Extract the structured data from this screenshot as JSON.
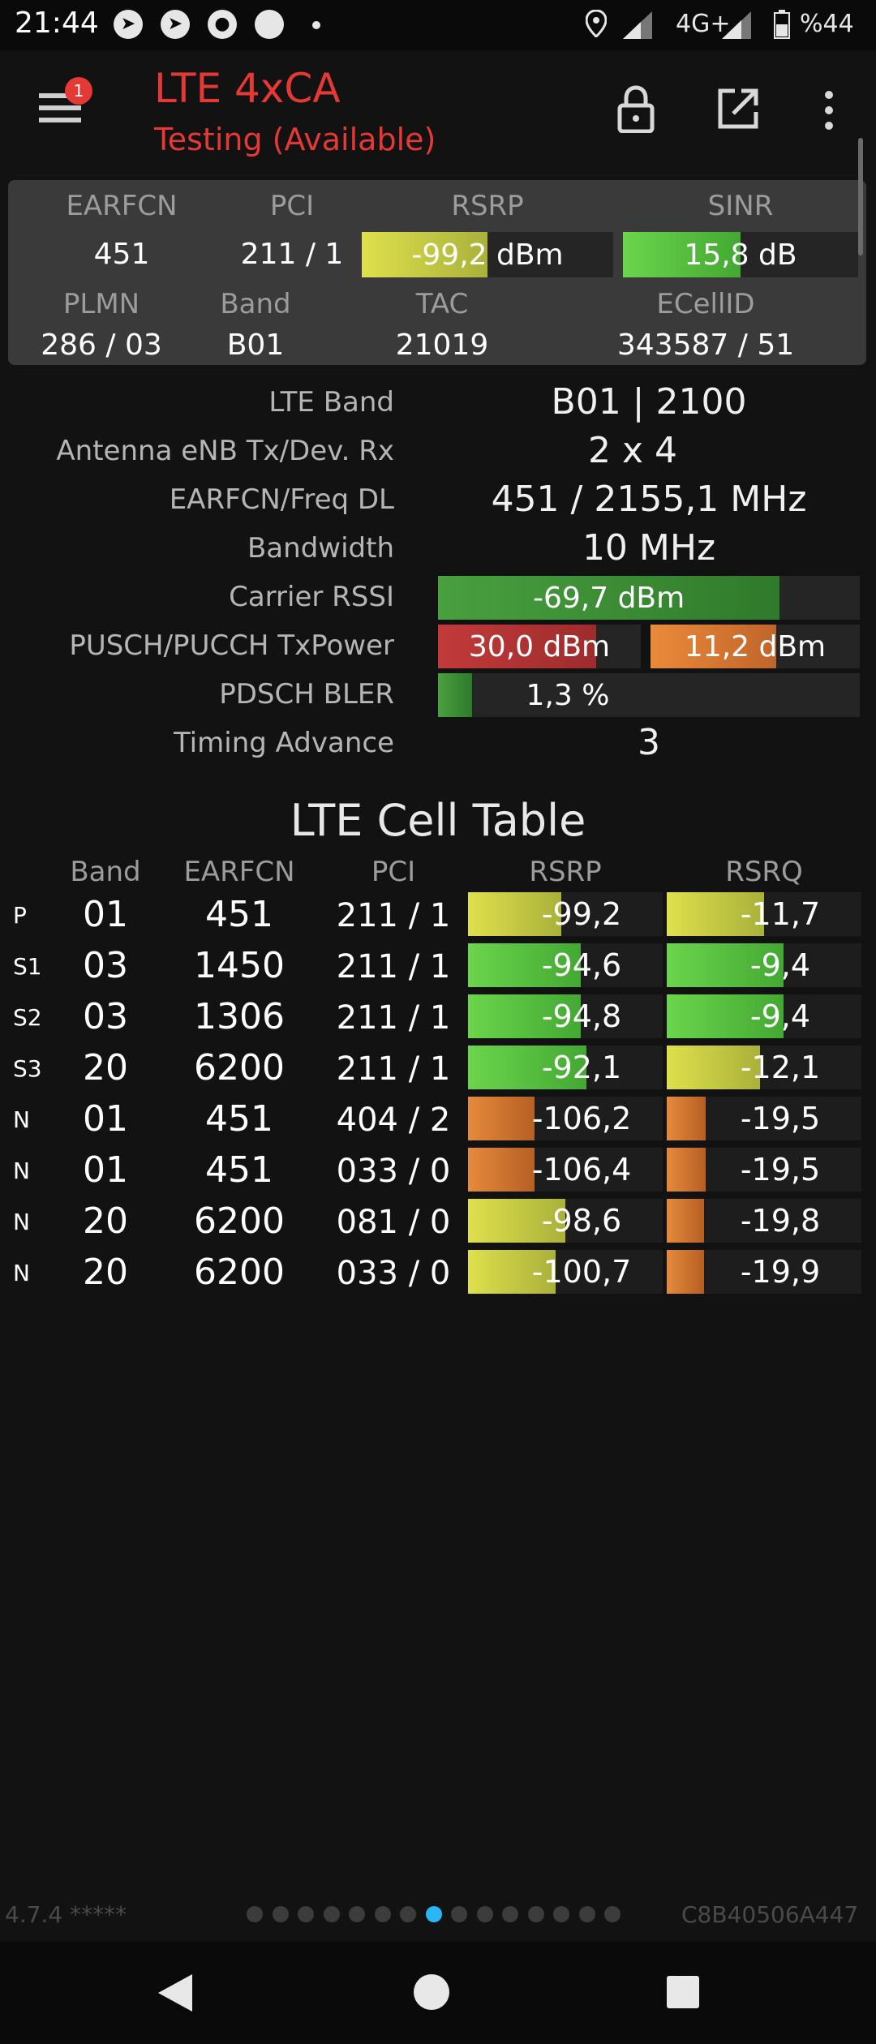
{
  "status_bar": {
    "time": "21:44",
    "network": "4G+",
    "battery": "%44",
    "icons": [
      "telegram-icon",
      "telegram-icon",
      "chat-icon",
      "circle-icon",
      "dot-icon",
      "location-icon",
      "signal-icon",
      "signal-icon",
      "battery-icon"
    ]
  },
  "appbar": {
    "badge": "1",
    "title": "LTE 4xCA",
    "subtitle": "Testing (Available)",
    "actions": [
      "lock-icon",
      "open-external-icon",
      "more-vert-icon"
    ]
  },
  "summary": {
    "headers1": [
      "EARFCN",
      "PCI",
      "RSRP",
      "SINR"
    ],
    "earfcn": "451",
    "pci": "211 / 1",
    "rsrp": "-99,2 dBm",
    "rsrp_fill": 0.5,
    "sinr": "15,8 dB",
    "sinr_fill": 0.5,
    "headers2": [
      "PLMN",
      "Band",
      "TAC",
      "ECellID"
    ],
    "plmn": "286 / 03",
    "band": "B01",
    "tac": "21019",
    "ecellid": "343587 / 51"
  },
  "info": {
    "lte_band_label": "LTE Band",
    "lte_band": "B01 | 2100",
    "antenna_label": "Antenna eNB Tx/Dev. Rx",
    "antenna": "2 x 4",
    "earfcn_freq_label": "EARFCN/Freq DL",
    "earfcn_freq": "451 / 2155,1 MHz",
    "bandwidth_label": "Bandwidth",
    "bandwidth": "10 MHz",
    "carrier_rssi_label": "Carrier RSSI",
    "carrier_rssi": "-69,7 dBm",
    "carrier_rssi_fill": 0.81,
    "txpower_label": "PUSCH/PUCCH TxPower",
    "pusch": "30,0 dBm",
    "pusch_fill": 0.78,
    "pucch": "11,2 dBm",
    "pucch_fill": 0.6,
    "bler_label": "PDSCH BLER",
    "bler": "1,3 %",
    "bler_fill": 0.08,
    "ta_label": "Timing Advance",
    "ta": "3"
  },
  "table": {
    "title": "LTE Cell Table",
    "headers": [
      "Band",
      "EARFCN",
      "PCI",
      "RSRP",
      "RSRQ"
    ],
    "rows": [
      {
        "type": "P",
        "band": "01",
        "earfcn": "451",
        "pci": "211 / 1",
        "rsrp": "-99,2",
        "rsrp_fill": 0.48,
        "rsrp_color": "yellow",
        "rsrq": "-11,7",
        "rsrq_fill": 0.5,
        "rsrq_color": "yellow"
      },
      {
        "type": "S1",
        "band": "03",
        "earfcn": "1450",
        "pci": "211 / 1",
        "rsrp": "-94,6",
        "rsrp_fill": 0.58,
        "rsrp_color": "green",
        "rsrq": "-9,4",
        "rsrq_fill": 0.6,
        "rsrq_color": "green"
      },
      {
        "type": "S2",
        "band": "03",
        "earfcn": "1306",
        "pci": "211 / 1",
        "rsrp": "-94,8",
        "rsrp_fill": 0.58,
        "rsrp_color": "green",
        "rsrq": "-9,4",
        "rsrq_fill": 0.6,
        "rsrq_color": "green"
      },
      {
        "type": "S3",
        "band": "20",
        "earfcn": "6200",
        "pci": "211 / 1",
        "rsrp": "-92,1",
        "rsrp_fill": 0.61,
        "rsrp_color": "green",
        "rsrq": "-12,1",
        "rsrq_fill": 0.48,
        "rsrq_color": "yellow"
      },
      {
        "type": "N",
        "band": "01",
        "earfcn": "451",
        "pci": "404 / 2",
        "rsrp": "-106,2",
        "rsrp_fill": 0.34,
        "rsrp_color": "orange",
        "rsrq": "-19,5",
        "rsrq_fill": 0.2,
        "rsrq_color": "orange"
      },
      {
        "type": "N",
        "band": "01",
        "earfcn": "451",
        "pci": "033 / 0",
        "rsrp": "-106,4",
        "rsrp_fill": 0.34,
        "rsrp_color": "orange",
        "rsrq": "-19,5",
        "rsrq_fill": 0.2,
        "rsrq_color": "orange"
      },
      {
        "type": "N",
        "band": "20",
        "earfcn": "6200",
        "pci": "081 / 0",
        "rsrp": "-98,6",
        "rsrp_fill": 0.5,
        "rsrp_color": "yellow",
        "rsrq": "-19,8",
        "rsrq_fill": 0.19,
        "rsrq_color": "orange"
      },
      {
        "type": "N",
        "band": "20",
        "earfcn": "6200",
        "pci": "033 / 0",
        "rsrp": "-100,7",
        "rsrp_fill": 0.45,
        "rsrp_color": "yellow",
        "rsrq": "-19,9",
        "rsrq_fill": 0.19,
        "rsrq_color": "orange"
      }
    ]
  },
  "footer": {
    "version": "4.7.4 *****",
    "device_id": "C8B40506A447",
    "page_count": 15,
    "active_page": 8
  },
  "navbar": [
    "back-icon",
    "home-icon",
    "recents-icon"
  ],
  "colors": {
    "accent": "#e53935",
    "green": "#5fd04a",
    "yellow": "#d2d84a",
    "orange": "#e0843a",
    "red": "#c0393a",
    "active_dot": "#29b6f6"
  }
}
